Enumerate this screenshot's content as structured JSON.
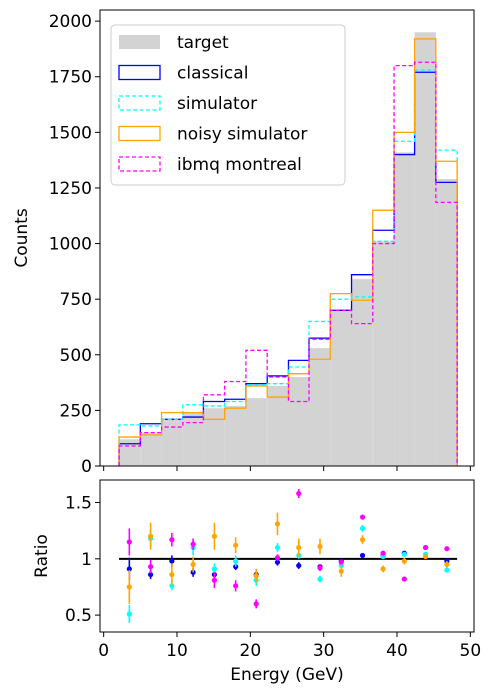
{
  "chart_data": [
    {
      "type": "histogram",
      "ylabel": "Counts",
      "xlim": [
        -0.5,
        50.5
      ],
      "ylim": [
        0,
        2050
      ],
      "yticks": [
        0,
        250,
        500,
        750,
        1000,
        1250,
        1500,
        1750,
        2000
      ],
      "legend_position": "upper-left",
      "bin_edges": [
        2.1,
        5.0,
        7.9,
        10.8,
        13.6,
        16.5,
        19.4,
        22.3,
        25.2,
        28.0,
        30.9,
        33.8,
        36.7,
        39.6,
        42.4,
        45.3,
        48.2
      ],
      "series": [
        {
          "name": "target",
          "style": "filled",
          "color": "#d3d3d3",
          "values": [
            120,
            150,
            210,
            240,
            260,
            270,
            305,
            360,
            400,
            530,
            700,
            840,
            1010,
            1410,
            1950,
            1290
          ]
        },
        {
          "name": "classical",
          "style": "solid",
          "color": "#0000ff",
          "values": [
            100,
            190,
            210,
            220,
            290,
            300,
            370,
            405,
            475,
            575,
            700,
            860,
            1060,
            1400,
            1770,
            1275
          ]
        },
        {
          "name": "simulator",
          "style": "dashed",
          "color": "#00ffff",
          "values": [
            185,
            180,
            210,
            275,
            270,
            290,
            365,
            370,
            445,
            650,
            750,
            760,
            1010,
            1460,
            1780,
            1420
          ]
        },
        {
          "name": "noisy simulator",
          "style": "solid",
          "color": "#ffa500",
          "values": [
            130,
            140,
            240,
            240,
            210,
            260,
            360,
            310,
            415,
            480,
            775,
            745,
            1150,
            1500,
            1920,
            1370
          ]
        },
        {
          "name": "ibmq montreal",
          "style": "dashed",
          "color": "#ff00ff",
          "values": [
            90,
            150,
            175,
            195,
            320,
            380,
            520,
            400,
            290,
            570,
            700,
            640,
            1000,
            1800,
            1815,
            1185
          ]
        }
      ]
    },
    {
      "type": "scatter",
      "xlabel": "Energy (GeV)",
      "ylabel": "Ratio",
      "xlim": [
        -0.5,
        50.5
      ],
      "ylim": [
        0.35,
        1.7
      ],
      "xticks": [
        0,
        10,
        20,
        30,
        40,
        50
      ],
      "yticks": [
        0.5,
        1.0,
        1.5
      ],
      "reference_line": 1.0,
      "x": [
        3.5,
        6.4,
        9.3,
        12.2,
        15.1,
        18.0,
        20.8,
        23.7,
        26.6,
        29.5,
        32.4,
        35.3,
        38.1,
        41.0,
        43.9,
        46.8
      ],
      "series": [
        {
          "name": "classical",
          "color": "#0000ff",
          "values": [
            0.91,
            0.86,
            0.98,
            0.88,
            0.86,
            0.93,
            0.86,
            0.97,
            0.94,
            0.93,
            0.98,
            1.03,
            1.03,
            1.05,
            1.1,
            0.98
          ],
          "errors": [
            0.1,
            0.04,
            0.05,
            0.04,
            0.04,
            0.03,
            0.03,
            0.03,
            0.03,
            0.02,
            0.02,
            0.02,
            0.02,
            0.02,
            0.02,
            0.02
          ]
        },
        {
          "name": "simulator",
          "color": "#00ffff",
          "values": [
            0.51,
            1.18,
            0.76,
            1.1,
            0.91,
            0.98,
            0.81,
            1.1,
            1.03,
            0.82,
            0.94,
            1.27,
            1.02,
            1.04,
            1.04,
            0.9
          ],
          "errors": [
            0.08,
            0.08,
            0.04,
            0.07,
            0.05,
            0.05,
            0.05,
            0.04,
            0.03,
            0.03,
            0.02,
            0.03,
            0.02,
            0.02,
            0.01,
            0.02
          ]
        },
        {
          "name": "noisy simulator",
          "color": "#ffa500",
          "values": [
            0.75,
            1.2,
            0.86,
            0.95,
            1.2,
            1.12,
            0.85,
            1.31,
            1.1,
            1.11,
            0.89,
            1.17,
            0.91,
            0.98,
            1.02,
            0.95
          ],
          "errors": [
            0.15,
            0.12,
            0.1,
            0.07,
            0.12,
            0.07,
            0.06,
            0.1,
            0.08,
            0.07,
            0.05,
            0.04,
            0.03,
            0.03,
            0.02,
            0.03
          ]
        },
        {
          "name": "ibmq montreal",
          "color": "#ff00ff",
          "values": [
            1.15,
            0.93,
            1.17,
            1.13,
            0.81,
            0.76,
            0.6,
            1.01,
            1.58,
            0.92,
            0.97,
            1.37,
            1.05,
            0.82,
            1.1,
            1.09
          ],
          "errors": [
            0.12,
            0.06,
            0.06,
            0.05,
            0.07,
            0.05,
            0.04,
            0.03,
            0.04,
            0.03,
            0.02,
            0.02,
            0.02,
            0.02,
            0.02,
            0.02
          ]
        }
      ]
    }
  ]
}
